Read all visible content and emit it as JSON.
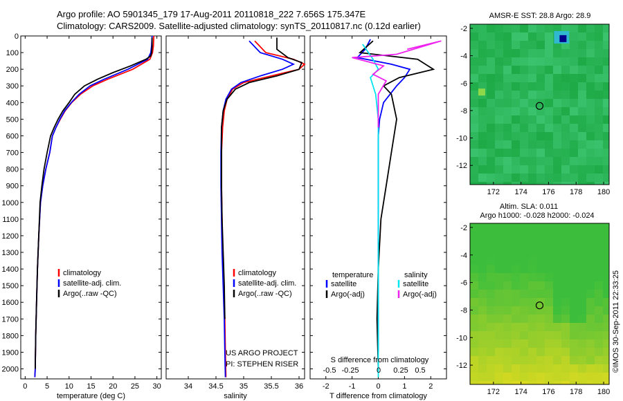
{
  "header": {
    "line1": "Argo profile: AO 5901345_179 17-Aug-2011 20110818_222 7.656S 175.347E",
    "line2": "Climatology: CARS2009. Satellite-adjusted climatology: synTS_20110817.nc (0.12d earlier)"
  },
  "side_label": "©IMOS 30-Sep-2011 22:33:25",
  "colors": {
    "climatology": "#ff0000",
    "satellite": "#0000ff",
    "argo": "#000000",
    "salinity_satellite": "#00e5ee",
    "salinity_argo": "#ee22ee"
  },
  "chart_data": [
    {
      "id": "temperature",
      "type": "line",
      "xlabel": "temperature (deg C)",
      "xlim": [
        -1,
        31
      ],
      "xticks": [
        0,
        5,
        10,
        15,
        20,
        25,
        30
      ],
      "ylim": [
        2060,
        0
      ],
      "yticks": [
        0,
        100,
        200,
        300,
        400,
        500,
        600,
        700,
        800,
        900,
        1000,
        1100,
        1200,
        1300,
        1400,
        1500,
        1600,
        1700,
        1800,
        1900,
        2000
      ],
      "legend": [
        "climatology",
        "satellite-adj. clim.",
        "Argo(..raw -QC)"
      ],
      "series": [
        {
          "name": "climatology",
          "color": "#ff0000",
          "x": [
            29.3,
            29.2,
            29.0,
            28.4,
            24.5,
            18.8,
            15.4,
            12.6,
            10.6,
            9.1,
            8.0,
            7.0,
            6.2,
            5.6,
            4.7,
            4.0,
            3.5,
            3.1,
            2.8,
            2.6,
            2.4,
            2.3,
            2.2
          ],
          "y": [
            0,
            60,
            100,
            140,
            200,
            260,
            300,
            350,
            400,
            450,
            500,
            550,
            600,
            700,
            800,
            900,
            1000,
            1200,
            1400,
            1600,
            1800,
            2000,
            2050
          ]
        },
        {
          "name": "satellite-adj. clim.",
          "color": "#0000ff",
          "x": [
            28.9,
            28.8,
            28.6,
            27.9,
            23.4,
            18.0,
            14.8,
            12.3,
            10.5,
            9.0,
            7.9,
            7.0,
            6.2,
            5.6,
            4.7,
            4.0,
            3.5,
            3.1,
            2.8,
            2.6,
            2.4,
            2.3,
            2.2
          ],
          "y": [
            0,
            60,
            100,
            140,
            200,
            260,
            300,
            350,
            400,
            450,
            500,
            550,
            600,
            700,
            800,
            900,
            1000,
            1200,
            1400,
            1600,
            1800,
            2000,
            2050
          ]
        },
        {
          "name": "Argo(..raw -QC)",
          "color": "#000000",
          "x": [
            28.9,
            28.9,
            28.8,
            28.6,
            27.5,
            24.0,
            20.0,
            16.5,
            13.5,
            11.3,
            10.0,
            8.6,
            7.5,
            6.6,
            5.8,
            5.0,
            4.3,
            3.8,
            3.4,
            3.1,
            2.8,
            2.6,
            2.4,
            2.3
          ],
          "y": [
            10,
            60,
            100,
            120,
            140,
            180,
            220,
            260,
            300,
            350,
            400,
            450,
            500,
            550,
            600,
            700,
            800,
            900,
            1000,
            1200,
            1400,
            1600,
            1800,
            2000
          ]
        }
      ]
    },
    {
      "id": "salinity",
      "type": "line",
      "xlabel": "salinity",
      "xlim": [
        33.6,
        36.1
      ],
      "xticks": [
        34,
        34.5,
        35,
        35.5,
        36
      ],
      "ylim": [
        2060,
        0
      ],
      "legend": [
        "climatology",
        "satellite-adj. clim.",
        "Argo(..raw -QC)"
      ],
      "annotation": [
        "US ARGO PROJECT",
        "PI: STEPHEN RISER"
      ],
      "series": [
        {
          "name": "climatology",
          "color": "#ff0000",
          "x": [
            35.2,
            35.4,
            35.9,
            36.1,
            36.0,
            35.5,
            35.0,
            34.8,
            34.7,
            34.65,
            34.62,
            34.6,
            34.6,
            34.61,
            34.62,
            34.64,
            34.66,
            34.67,
            34.68
          ],
          "y": [
            30,
            100,
            140,
            170,
            200,
            240,
            280,
            320,
            380,
            450,
            550,
            700,
            900,
            1100,
            1300,
            1500,
            1700,
            1900,
            2050
          ]
        },
        {
          "name": "satellite-adj. clim.",
          "color": "#0000ff",
          "x": [
            35.1,
            35.3,
            35.7,
            35.9,
            35.7,
            35.3,
            34.95,
            34.78,
            34.68,
            34.63,
            34.6,
            34.59,
            34.59,
            34.6,
            34.61,
            34.63,
            34.65,
            34.66,
            34.67
          ],
          "y": [
            30,
            100,
            140,
            170,
            200,
            240,
            280,
            320,
            380,
            450,
            550,
            700,
            900,
            1100,
            1300,
            1500,
            1700,
            1900,
            2050
          ]
        },
        {
          "name": "Argo(..raw -QC)",
          "color": "#000000",
          "x": [
            35.6,
            35.6,
            35.8,
            36.05,
            36.0,
            35.6,
            35.1,
            34.85,
            34.7,
            34.63,
            34.6,
            34.6,
            34.6,
            34.61,
            34.63,
            34.65,
            34.66
          ],
          "y": [
            10,
            80,
            130,
            160,
            200,
            240,
            280,
            320,
            380,
            450,
            550,
            700,
            900,
            1100,
            1300,
            1500,
            1700
          ]
        }
      ]
    },
    {
      "id": "differences",
      "type": "line",
      "xlabel": "T difference from climatology",
      "xlabel2": "S difference from climatology",
      "xlim": [
        -2.6,
        2.6
      ],
      "xticks": [
        -2,
        -1,
        0,
        1,
        2
      ],
      "xticks2": [
        -0.5,
        -0.25,
        0,
        0.25,
        0.5
      ],
      "ylim": [
        2060,
        0
      ],
      "legend": [
        "temperature",
        "salinity",
        "satellite",
        "satellite",
        "Argo(-adj)",
        "Argo(-adj)"
      ],
      "series": [
        {
          "name": "satellite",
          "color": "#0000ff",
          "x": [
            -0.3,
            -0.5,
            -0.8,
            0.5,
            1.2,
            1.0,
            0.7,
            0.2,
            0.05,
            0.0,
            0.0,
            0.0,
            0.0,
            0.0,
            0.0,
            0.0,
            0.0
          ],
          "y": [
            20,
            80,
            130,
            170,
            200,
            250,
            300,
            400,
            500,
            600,
            700,
            900,
            1100,
            1300,
            1500,
            1700,
            1900
          ]
        },
        {
          "name": "Argo(-adj)",
          "color": "#000000",
          "x": [
            -0.2,
            -0.7,
            1.5,
            2.1,
            0.8,
            0.2,
            0.5,
            0.7,
            0.6,
            0.5,
            0.3,
            0.1,
            0.0,
            -0.05,
            0.0
          ],
          "y": [
            30,
            100,
            140,
            200,
            250,
            300,
            350,
            500,
            600,
            700,
            900,
            1100,
            1400,
            1700,
            2000
          ]
        },
        {
          "name": "salinity satellite",
          "color": "#00e5ee",
          "x": [
            -0.6,
            -0.2,
            0.0,
            -0.3,
            -0.1,
            0.0,
            0.0,
            0.0,
            0.0,
            0.0,
            0.0,
            0.0
          ],
          "y": [
            50,
            140,
            200,
            250,
            350,
            500,
            800,
            1100,
            1400,
            1700,
            2000,
            2050
          ]
        },
        {
          "name": "salinity Argo(-adj)",
          "color": "#ee22ee",
          "x": [
            1.1,
            2.4,
            0.7,
            -1.0,
            0.2,
            -0.2,
            0.3,
            0.0,
            0.0,
            0.0
          ],
          "y": [
            80,
            30,
            110,
            130,
            180,
            230,
            270,
            350,
            450,
            550
          ]
        }
      ]
    }
  ],
  "maps": [
    {
      "id": "sst-map",
      "title": "AMSR-E SST: 28.8 Argo: 28.9",
      "xticks": [
        172,
        174,
        176,
        178,
        180
      ],
      "yticks": [
        -2,
        -4,
        -6,
        -8,
        -10,
        -12
      ],
      "xlim": [
        170.3,
        180.4
      ],
      "ylim": [
        -13.4,
        -1.7
      ],
      "marker": {
        "lon": 175.35,
        "lat": -7.66
      }
    },
    {
      "id": "sla-map",
      "title": "Altim. SLA: 0.011",
      "subtitle": "Argo h1000: -0.028 h2000: -0.024",
      "xticks": [
        172,
        174,
        176,
        178,
        180
      ],
      "yticks": [
        -2,
        -4,
        -6,
        -8,
        -10,
        -12
      ],
      "xlim": [
        170.3,
        180.4
      ],
      "ylim": [
        -13.4,
        -1.7
      ],
      "marker": {
        "lon": 175.35,
        "lat": -7.66
      }
    }
  ]
}
